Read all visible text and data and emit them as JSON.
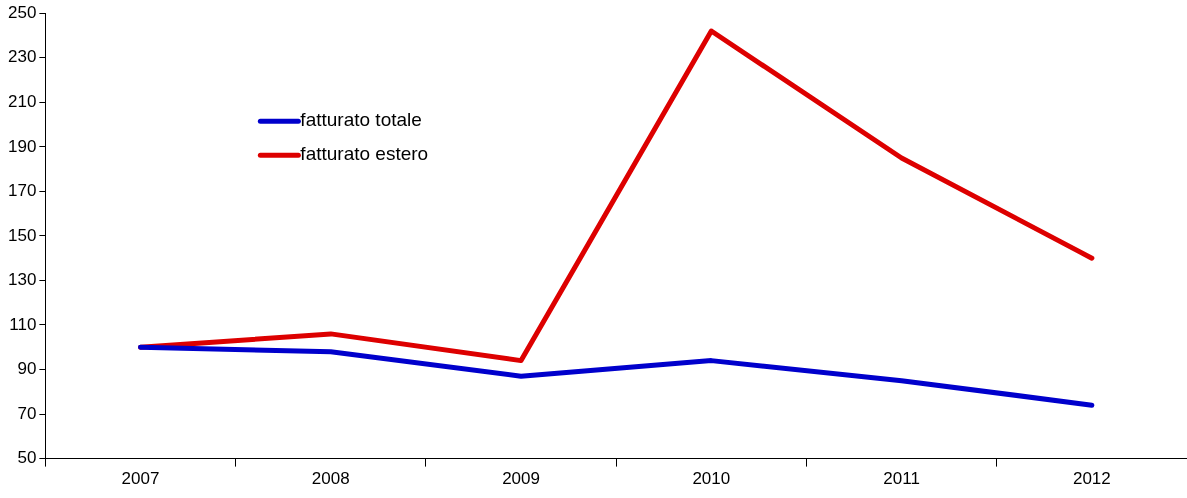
{
  "chart_data": {
    "type": "line",
    "categories": [
      "2007",
      "2008",
      "2009",
      "2010",
      "2011",
      "2012"
    ],
    "series": [
      {
        "name": "fatturato totale",
        "color": "#0000cc",
        "values": [
          100,
          98,
          87,
          94,
          85,
          74
        ]
      },
      {
        "name": "fatturato estero",
        "color": "#dd0000",
        "values": [
          100,
          106,
          94,
          242,
          185,
          140
        ]
      }
    ],
    "ylim": [
      50,
      250
    ],
    "yticks": [
      50,
      70,
      90,
      110,
      130,
      150,
      170,
      190,
      210,
      230,
      250
    ],
    "grid": false,
    "legend": "top left",
    "marker": "none",
    "line_style": "solid"
  }
}
